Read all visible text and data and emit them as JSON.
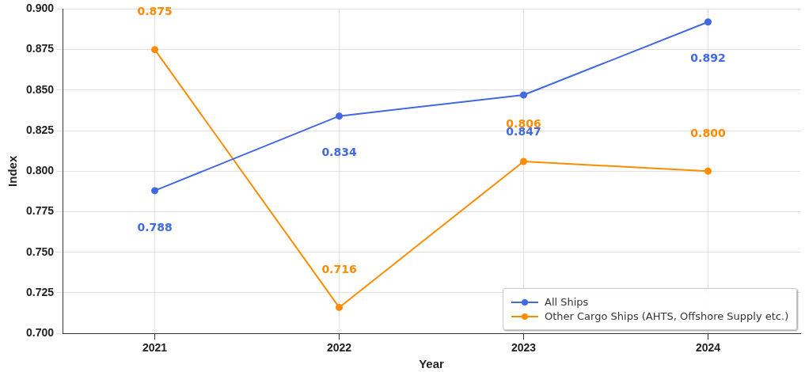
{
  "chart_data": {
    "type": "line",
    "xlabel": "Year",
    "ylabel": "Index",
    "categories": [
      "2021",
      "2022",
      "2023",
      "2024"
    ],
    "series": [
      {
        "name": "All Ships",
        "color": "#4169e1",
        "values": [
          0.788,
          0.834,
          0.847,
          0.892
        ],
        "value_labels": [
          "0.788",
          "0.834",
          "0.847",
          "0.892"
        ]
      },
      {
        "name": "Other Cargo Ships (AHTS, Offshore Supply etc.)",
        "color": "#ff8c00",
        "values": [
          0.875,
          0.716,
          0.806,
          0.8
        ],
        "value_labels": [
          "0.875",
          "0.716",
          "0.806",
          "0.800"
        ]
      }
    ],
    "ylim": [
      0.7,
      0.9
    ],
    "yticks": [
      {
        "value": 0.7,
        "label": "0.700"
      },
      {
        "value": 0.725,
        "label": "0.725"
      },
      {
        "value": 0.75,
        "label": "0.750"
      },
      {
        "value": 0.775,
        "label": "0.775"
      },
      {
        "value": 0.8,
        "label": "0.800"
      },
      {
        "value": 0.825,
        "label": "0.825"
      },
      {
        "value": 0.85,
        "label": "0.850"
      },
      {
        "value": 0.875,
        "label": "0.875"
      },
      {
        "value": 0.9,
        "label": "0.900"
      }
    ],
    "grid": true,
    "legend": "bottom right",
    "marker": "circle",
    "line_style": "solid"
  }
}
